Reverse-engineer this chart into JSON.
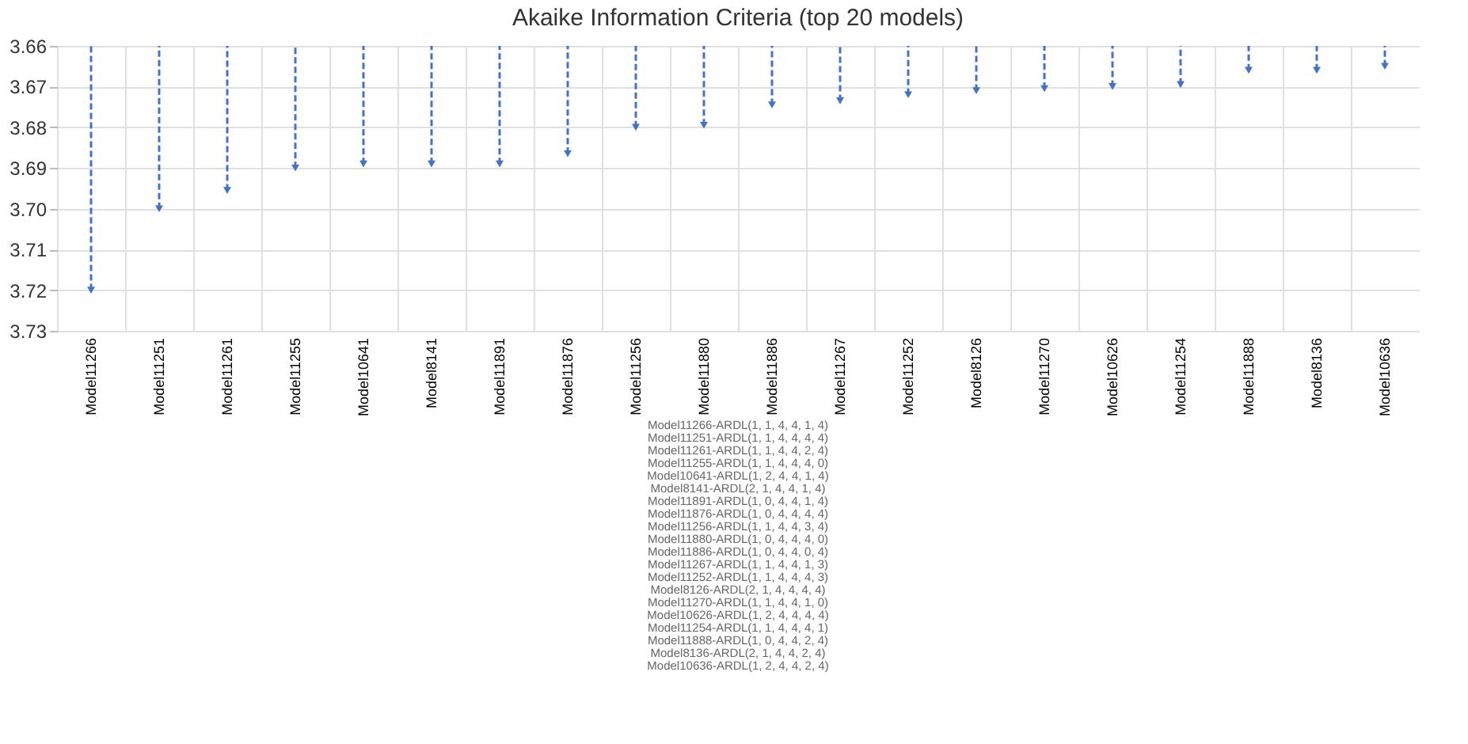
{
  "chart_data": {
    "type": "lollipop",
    "title": "Akaike Information Criteria (top 20 models)",
    "categories": [
      "Model11266",
      "Model11251",
      "Model11261",
      "Model11255",
      "Model10641",
      "Model8141",
      "Model11891",
      "Model11876",
      "Model11256",
      "Model11880",
      "Model11886",
      "Model11267",
      "Model11252",
      "Model8126",
      "Model11270",
      "Model10626",
      "Model11254",
      "Model11888",
      "Model8136",
      "Model10636"
    ],
    "series": [
      {
        "color": "#4472c4",
        "values": [
          3.72,
          3.7,
          3.6955,
          3.69,
          3.689,
          3.689,
          3.689,
          3.6865,
          3.68,
          3.6795,
          3.6745,
          3.6735,
          3.672,
          3.671,
          3.6705,
          3.67,
          3.6695,
          3.666,
          3.666,
          3.665
        ]
      }
    ],
    "ylim": [
      3.73,
      3.66
    ],
    "yticks": [
      3.66,
      3.67,
      3.68,
      3.69,
      {
        "value": 3.7,
        "label": "3.70"
      },
      3.71,
      3.72,
      3.73
    ],
    "grid": true,
    "marker": "triangle",
    "line_style": "dashed",
    "annotations": [
      "Model11266-ARDL(1, 1, 4, 4, 1, 4)",
      "Model11251-ARDL(1, 1, 4, 4, 4, 4)",
      "Model11261-ARDL(1, 1, 4, 4, 2, 4)",
      "Model11255-ARDL(1, 1, 4, 4, 4, 0)",
      "Model10641-ARDL(1, 2, 4, 4, 1, 4)",
      "Model8141-ARDL(2, 1, 4, 4, 1, 4)",
      "Model11891-ARDL(1, 0, 4, 4, 1, 4)",
      "Model11876-ARDL(1, 0, 4, 4, 4, 4)",
      "Model11256-ARDL(1, 1, 4, 4, 3, 4)",
      "Model11880-ARDL(1, 0, 4, 4, 4, 0)",
      "Model11886-ARDL(1, 0, 4, 4, 0, 4)",
      "Model11267-ARDL(1, 1, 4, 4, 1, 3)",
      "Model11252-ARDL(1, 1, 4, 4, 4, 3)",
      "Model8126-ARDL(2, 1, 4, 4, 4, 4)",
      "Model11270-ARDL(1, 1, 4, 4, 1, 0)",
      "Model10626-ARDL(1, 2, 4, 4, 4, 4)",
      "Model11254-ARDL(1, 1, 4, 4, 4, 1)",
      "Model11888-ARDL(1, 0, 4, 4, 2, 4)",
      "Model8136-ARDL(2, 1, 4, 4, 2, 4)",
      "Model10636-ARDL(1, 2, 4, 4, 2, 4)"
    ]
  }
}
